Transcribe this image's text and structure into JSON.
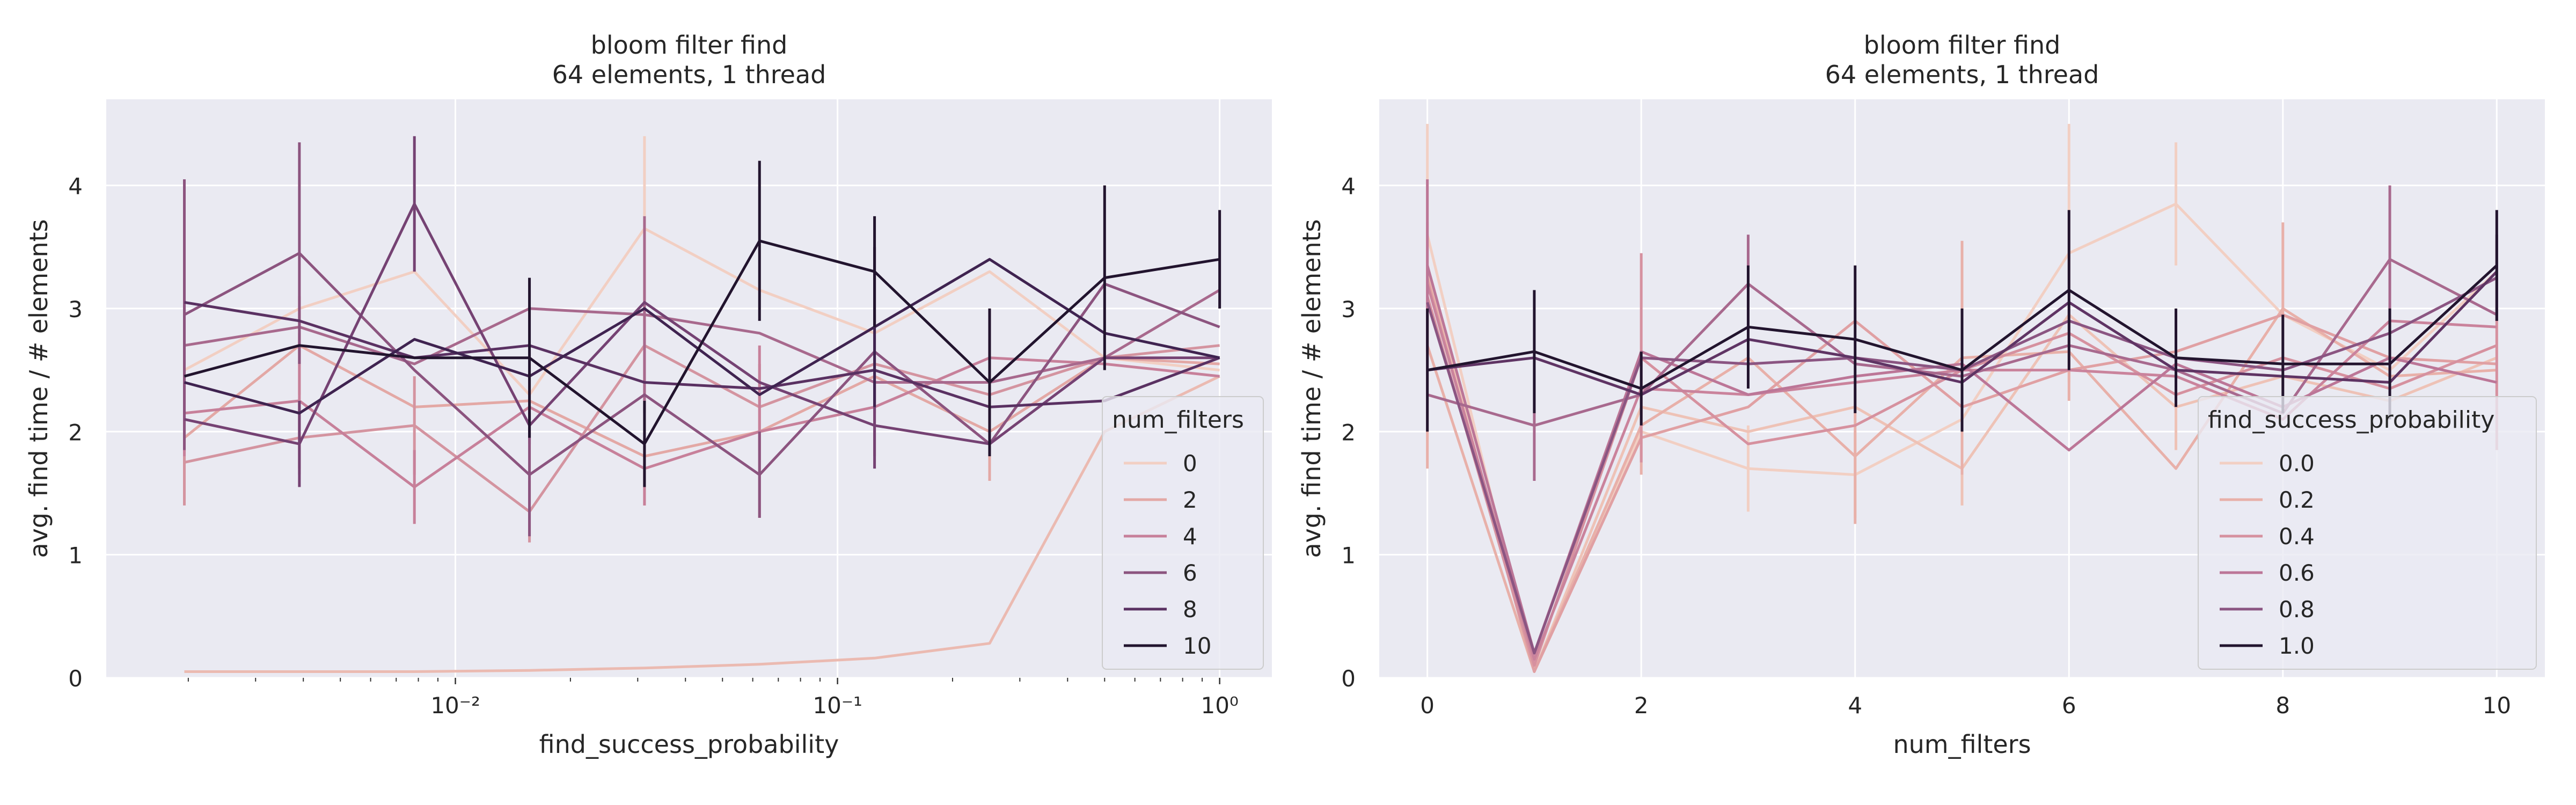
{
  "chart_data": [
    {
      "type": "line",
      "title": "bloom filter find",
      "subtitle": "64 elements, 1 thread",
      "xlabel": "find_success_probability",
      "ylabel": "avg. find time / # elements",
      "xscale": "log",
      "xlim": [
        0.00122,
        1.37
      ],
      "ylim": [
        0,
        4.7
      ],
      "x": [
        0.001953125,
        0.00390625,
        0.0078125,
        0.015625,
        0.03125,
        0.0625,
        0.125,
        0.25,
        0.5,
        1.0
      ],
      "x_tick_labels": [
        "10⁻²",
        "10⁻¹",
        "10⁰"
      ],
      "x_ticks": [
        0.01,
        0.1,
        1.0
      ],
      "y_ticks": [
        0,
        1,
        2,
        3,
        4
      ],
      "y_tick_labels": [
        "0",
        "1",
        "2",
        "3",
        "4"
      ],
      "grid": true,
      "legend": {
        "title": "num_filters",
        "placement": "lower-right",
        "labels": [
          "0",
          "2",
          "4",
          "6",
          "8",
          "10"
        ]
      },
      "series": [
        {
          "hue": 0,
          "legend": true,
          "color": "#f2cfc3",
          "values": [
            2.5,
            3.0,
            3.3,
            2.3,
            3.65,
            3.15,
            2.8,
            3.3,
            2.6,
            2.5
          ],
          "err": [
            0,
            0,
            0,
            0,
            0.75,
            0,
            0,
            0,
            0,
            0
          ]
        },
        {
          "hue": 1,
          "legend": false,
          "color": "#ebbab1",
          "values": [
            0.05,
            0.05,
            0.05,
            0.06,
            0.08,
            0.11,
            0.16,
            0.28,
            2.0,
            2.45
          ],
          "err": [
            0,
            0,
            0,
            0,
            0,
            0,
            0,
            0,
            0,
            0
          ]
        },
        {
          "hue": 2,
          "legend": true,
          "color": "#e3a8a5",
          "values": [
            1.95,
            2.7,
            2.2,
            2.25,
            1.8,
            2.0,
            2.45,
            2.0,
            2.6,
            2.55
          ],
          "err": [
            0.5,
            0.4,
            0,
            0,
            0.4,
            0,
            0,
            0.4,
            0,
            0
          ]
        },
        {
          "hue": 3,
          "legend": false,
          "color": "#d494a0",
          "values": [
            1.75,
            1.95,
            2.05,
            1.35,
            2.7,
            2.2,
            2.55,
            2.3,
            2.6,
            2.7
          ],
          "err": [
            0.35,
            0.3,
            0.4,
            0.25,
            0.45,
            0.35,
            0.4,
            0.45,
            0,
            0
          ]
        },
        {
          "hue": 4,
          "legend": true,
          "color": "#c7809a",
          "values": [
            2.15,
            2.25,
            1.55,
            2.2,
            1.7,
            2.0,
            2.2,
            2.6,
            2.55,
            2.45
          ],
          "err": [
            0.35,
            0.55,
            0.3,
            0.3,
            0.3,
            0.7,
            0.4,
            0.4,
            0,
            0
          ]
        },
        {
          "hue": 5,
          "legend": false,
          "color": "#a8698d",
          "values": [
            2.7,
            2.85,
            2.55,
            3.0,
            2.95,
            2.8,
            2.4,
            2.4,
            2.6,
            3.15
          ],
          "err": [
            0.55,
            0,
            0,
            0,
            0.8,
            0,
            0,
            0,
            0,
            0
          ]
        },
        {
          "hue": 6,
          "legend": true,
          "color": "#8c547f",
          "values": [
            2.95,
            3.45,
            2.5,
            1.65,
            2.3,
            1.65,
            2.65,
            1.9,
            3.2,
            2.85
          ],
          "err": [
            1.1,
            0.9,
            0,
            0.5,
            0,
            0.35,
            0,
            0,
            0,
            0
          ]
        },
        {
          "hue": 7,
          "legend": false,
          "color": "#754273",
          "values": [
            2.1,
            1.9,
            3.85,
            2.05,
            3.05,
            2.4,
            2.05,
            1.9,
            2.6,
            2.6
          ],
          "err": [
            0,
            0.35,
            0.55,
            0,
            0,
            0,
            0.35,
            0,
            0,
            0
          ]
        },
        {
          "hue": 8,
          "legend": true,
          "color": "#5a3162",
          "values": [
            3.05,
            2.9,
            2.6,
            2.7,
            2.4,
            2.35,
            2.5,
            2.2,
            2.25,
            2.6
          ],
          "err": [
            0,
            0,
            0,
            0,
            0,
            0,
            0,
            0,
            0,
            0
          ]
        },
        {
          "hue": 9,
          "legend": false,
          "color": "#3f2350",
          "values": [
            2.4,
            2.15,
            2.75,
            2.45,
            3.0,
            2.3,
            2.85,
            3.4,
            2.8,
            2.6
          ],
          "err": [
            0,
            0,
            0,
            0,
            0,
            0,
            0.65,
            0,
            0,
            0
          ]
        },
        {
          "hue": 10,
          "legend": true,
          "color": "#22142e",
          "values": [
            2.45,
            2.7,
            2.6,
            2.6,
            1.9,
            3.55,
            3.3,
            2.4,
            3.25,
            3.4
          ],
          "err": [
            0,
            0,
            0,
            0.65,
            0.35,
            0.65,
            0.45,
            0.6,
            0.75,
            0.4
          ]
        }
      ]
    },
    {
      "type": "line",
      "title": "bloom filter find",
      "subtitle": "64 elements, 1 thread",
      "xlabel": "num_filters",
      "ylabel": "avg. find time / # elements",
      "xscale": "linear",
      "xlim": [
        -0.45,
        10.45
      ],
      "ylim": [
        0,
        4.7
      ],
      "x": [
        0,
        1,
        2,
        3,
        4,
        5,
        6,
        7,
        8,
        9,
        10
      ],
      "x_ticks": [
        0,
        2,
        4,
        6,
        8,
        10
      ],
      "x_tick_labels": [
        "0",
        "2",
        "4",
        "6",
        "8",
        "10"
      ],
      "y_ticks": [
        0,
        1,
        2,
        3,
        4
      ],
      "y_tick_labels": [
        "0",
        "1",
        "2",
        "3",
        "4"
      ],
      "grid": true,
      "legend": {
        "title": "find_success_probability",
        "placement": "lower-right",
        "labels": [
          "0.0",
          "0.2",
          "0.4",
          "0.6",
          "0.8",
          "1.0"
        ]
      },
      "series": [
        {
          "hue": 0,
          "legend": true,
          "color": "#f2cfc3",
          "values": [
            3.6,
            0.05,
            2.0,
            1.7,
            1.65,
            2.1,
            3.45,
            3.85,
            2.95,
            2.5,
            3.3
          ],
          "err": [
            0.9,
            0,
            0,
            0.35,
            0.35,
            0,
            1.05,
            0.5,
            0,
            0,
            0
          ]
        },
        {
          "hue": 1,
          "legend": false,
          "color": "#eec2b6",
          "values": [
            3.3,
            0.05,
            2.2,
            2.0,
            2.2,
            1.7,
            2.95,
            2.2,
            2.45,
            2.25,
            2.6
          ],
          "err": [
            0,
            0,
            0,
            0,
            0,
            0.3,
            0,
            0.35,
            0,
            0,
            0
          ]
        },
        {
          "hue": 2,
          "legend": true,
          "color": "#e8b0a9",
          "values": [
            2.7,
            0.05,
            2.05,
            2.6,
            1.8,
            2.6,
            2.65,
            1.7,
            3.0,
            2.45,
            2.5
          ],
          "err": [
            1.0,
            0,
            0.4,
            0,
            0.55,
            0.95,
            0.4,
            0,
            0.7,
            0,
            0
          ]
        },
        {
          "hue": 3,
          "legend": false,
          "color": "#e0a0a3",
          "values": [
            3.25,
            0.05,
            1.95,
            2.2,
            2.9,
            2.2,
            2.5,
            2.65,
            2.95,
            2.6,
            2.55
          ],
          "err": [
            0,
            0,
            0,
            0,
            0,
            0,
            0,
            0,
            0,
            0,
            0
          ]
        },
        {
          "hue": 4,
          "legend": true,
          "color": "#d6919f",
          "values": [
            3.1,
            0.1,
            2.6,
            1.9,
            2.05,
            2.5,
            2.8,
            2.3,
            2.6,
            2.35,
            2.7
          ],
          "err": [
            0,
            0,
            0.85,
            0,
            0,
            0,
            0,
            0,
            0,
            0,
            0.85
          ]
        },
        {
          "hue": 5,
          "legend": false,
          "color": "#ca839c",
          "values": [
            3.2,
            0.15,
            2.35,
            2.3,
            2.4,
            2.5,
            2.5,
            2.45,
            2.1,
            2.9,
            2.85
          ],
          "err": [
            0,
            0,
            0,
            0,
            0,
            0,
            0,
            0,
            0,
            0,
            0
          ]
        },
        {
          "hue": 6,
          "legend": true,
          "color": "#bc7697",
          "values": [
            3.35,
            0.2,
            2.65,
            2.3,
            2.45,
            2.55,
            1.85,
            2.55,
            2.2,
            2.6,
            2.4
          ],
          "err": [
            0.7,
            0,
            0,
            0,
            0,
            0,
            0,
            0,
            0,
            0,
            0
          ]
        },
        {
          "hue": 7,
          "legend": false,
          "color": "#a8698e",
          "values": [
            2.3,
            2.05,
            2.3,
            3.2,
            2.55,
            2.45,
            2.7,
            2.5,
            2.15,
            3.4,
            2.95
          ],
          "err": [
            0,
            0.45,
            0,
            0.4,
            0,
            0,
            0,
            0,
            0,
            0.6,
            0
          ]
        },
        {
          "hue": 8,
          "legend": true,
          "color": "#8b5582",
          "values": [
            3.05,
            0.2,
            2.6,
            2.55,
            2.6,
            2.5,
            2.9,
            2.6,
            2.5,
            2.8,
            3.25
          ],
          "err": [
            0,
            0,
            0,
            0,
            0,
            0,
            0,
            0,
            0,
            0,
            0.35
          ]
        },
        {
          "hue": 9,
          "legend": false,
          "color": "#5f3464",
          "values": [
            2.5,
            2.6,
            2.3,
            2.75,
            2.6,
            2.4,
            3.05,
            2.5,
            2.45,
            2.4,
            3.3
          ],
          "err": [
            0,
            0,
            0,
            0,
            0,
            0,
            0,
            0,
            0,
            0,
            0
          ]
        },
        {
          "hue": 10,
          "legend": true,
          "color": "#22142e",
          "values": [
            2.5,
            2.65,
            2.35,
            2.85,
            2.75,
            2.5,
            3.15,
            2.6,
            2.55,
            2.55,
            3.35
          ],
          "err": [
            0.5,
            0.5,
            0.3,
            0.5,
            0.6,
            0.5,
            0.65,
            0.4,
            0.4,
            0.45,
            0.45
          ]
        }
      ]
    }
  ]
}
